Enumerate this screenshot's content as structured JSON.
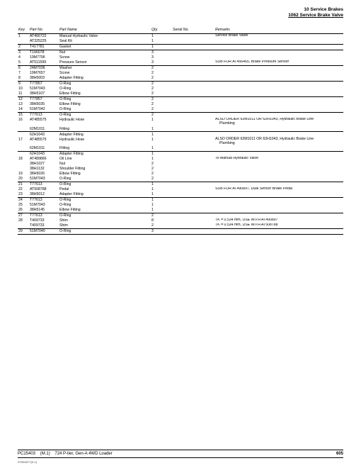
{
  "header": {
    "line1": "10 Service Brakes",
    "line2": "1062 Service Brake Valve"
  },
  "columns": {
    "key": "Key",
    "part": "Part No.",
    "name": "Part Name",
    "qty": "Qty.",
    "serial": "Serial No.",
    "remarks": "Remarks"
  },
  "rows": [
    {
      "key": "1",
      "part": "AT466722",
      "name": "Manual Hydraulic Valve",
      "qty": "1",
      "remarks": "Service Brake Valve"
    },
    {
      "key": "",
      "part": "AT325225",
      "name": "Seal Kit",
      "qty": "1",
      "remarks": "",
      "sep": true
    },
    {
      "key": "2",
      "part": "T417781",
      "name": "Gasket",
      "qty": "1",
      "remarks": "",
      "sep": true
    },
    {
      "key": "3",
      "part": "T196078",
      "name": "Nut",
      "qty": "3",
      "remarks": ""
    },
    {
      "key": "4",
      "part": "19M7796",
      "name": "Screw",
      "qty": "3",
      "remarks": ""
    },
    {
      "key": "5",
      "part": "AT511599",
      "name": "Pressure Sensor",
      "qty": "3",
      "remarks": "SUB FOR AT456465, Brake Pressure Sensor",
      "sep": true
    },
    {
      "key": "6",
      "part": "24M7036",
      "name": "Washer",
      "qty": "2",
      "remarks": ""
    },
    {
      "key": "7",
      "part": "19M7657",
      "name": "Screw",
      "qty": "2",
      "remarks": ""
    },
    {
      "key": "8",
      "part": "38H5003",
      "name": "Adapter Fitting",
      "qty": "2",
      "remarks": "",
      "sep": true
    },
    {
      "key": "9",
      "part": "T77857",
      "name": "O-Ring",
      "qty": "2",
      "remarks": ""
    },
    {
      "key": "10",
      "part": "51M7043",
      "name": "O-Ring",
      "qty": "2",
      "remarks": ""
    },
    {
      "key": "11",
      "part": "38H5107",
      "name": "Elbow Fitting",
      "qty": "2",
      "remarks": "",
      "sep": true
    },
    {
      "key": "12",
      "part": "T77857",
      "name": "O-Ring",
      "qty": "2",
      "remarks": ""
    },
    {
      "key": "13",
      "part": "38H5035",
      "name": "Elbow Fitting",
      "qty": "2",
      "remarks": ""
    },
    {
      "key": "14",
      "part": "51M7042",
      "name": "O-Ring",
      "qty": "2",
      "remarks": "",
      "sep": true
    },
    {
      "key": "15",
      "part": "T77613",
      "name": "O-Ring",
      "qty": "2",
      "remarks": ""
    },
    {
      "key": "16",
      "part": "AT485575",
      "name": "Hydraulic Hose",
      "qty": "1",
      "remarks": "ALSO ORDER 62M1011 OR 62H1043, Hydraulic Brake Line Plumbing",
      "indentRemark": true
    },
    {
      "key": "",
      "part": "62M1011",
      "name": "Fitting",
      "qty": "1",
      "remarks": "",
      "sep": true
    },
    {
      "key": "",
      "part": "62H1043",
      "name": "Adapter Fitting",
      "qty": "1",
      "remarks": ""
    },
    {
      "key": "17",
      "part": "AT485575",
      "name": "Hydraulic Hose",
      "qty": "1",
      "remarks": "ALSO ORDER 62M1011 OR 62H1043, Hydraulic Brake Line Plumbing",
      "indentRemark": true
    },
    {
      "key": "",
      "part": "62M1011",
      "name": "Fitting",
      "qty": "1",
      "remarks": "",
      "sep": true
    },
    {
      "key": "",
      "part": "62H1043",
      "name": "Adapter Fitting",
      "qty": "1",
      "remarks": ""
    },
    {
      "key": "18",
      "part": "AT489866",
      "name": "Oil Line",
      "qty": "1",
      "remarks": "To Manual Hydraulic Valve"
    },
    {
      "key": "",
      "part": "38H1027",
      "name": "Nut",
      "qty": "2",
      "remarks": ""
    },
    {
      "key": "",
      "part": "38H1132",
      "name": "Shoulder Fitting",
      "qty": "2",
      "remarks": ""
    },
    {
      "key": "19",
      "part": "38H5026",
      "name": "Elbow Fitting",
      "qty": "2",
      "remarks": ""
    },
    {
      "key": "20",
      "part": "51M7043",
      "name": "O-Ring",
      "qty": "2",
      "remarks": "",
      "sep": true
    },
    {
      "key": "21",
      "part": "T77613",
      "name": "O-Ring",
      "qty": "1",
      "remarks": ""
    },
    {
      "key": "22",
      "part": "AT508788",
      "name": "Pedal",
      "qty": "1",
      "remarks": "SUB FOR AT490897, Dual Sensor Brake Pedal"
    },
    {
      "key": "23",
      "part": "38H5012",
      "name": "Adapter Fitting",
      "qty": "1",
      "remarks": "",
      "sep": true
    },
    {
      "key": "24",
      "part": "T77613",
      "name": "O-Ring",
      "qty": "1",
      "remarks": ""
    },
    {
      "key": "25",
      "part": "51M7043",
      "name": "O-Ring",
      "qty": "1",
      "remarks": ""
    },
    {
      "key": "26",
      "part": "38H5145",
      "name": "Elbow Fitting",
      "qty": "1",
      "remarks": "",
      "sep": true
    },
    {
      "key": "27",
      "part": "T77613",
      "name": "O-Ring",
      "qty": "2",
      "remarks": ""
    },
    {
      "key": "28",
      "part": "T409733",
      "name": "Shim",
      "qty": "8",
      "remarks": "TK = 0.534 mm, USE WITH AT490897"
    },
    {
      "key": "",
      "part": "T409733",
      "name": "Shim",
      "qty": "2",
      "remarks": "TK = 0.534 mm, USE WITH AT508788",
      "sep": true
    },
    {
      "key": "29",
      "part": "51M7040",
      "name": "O-Ring",
      "qty": "3",
      "remarks": "",
      "sep": true
    }
  ],
  "footer": {
    "left_code": "PC15403",
    "left_rev": "(M.1)",
    "left_model": "724 P-tier, Gen-A 4WD Loader",
    "right_page": "605",
    "tiny": "ST862677(K.1)"
  }
}
